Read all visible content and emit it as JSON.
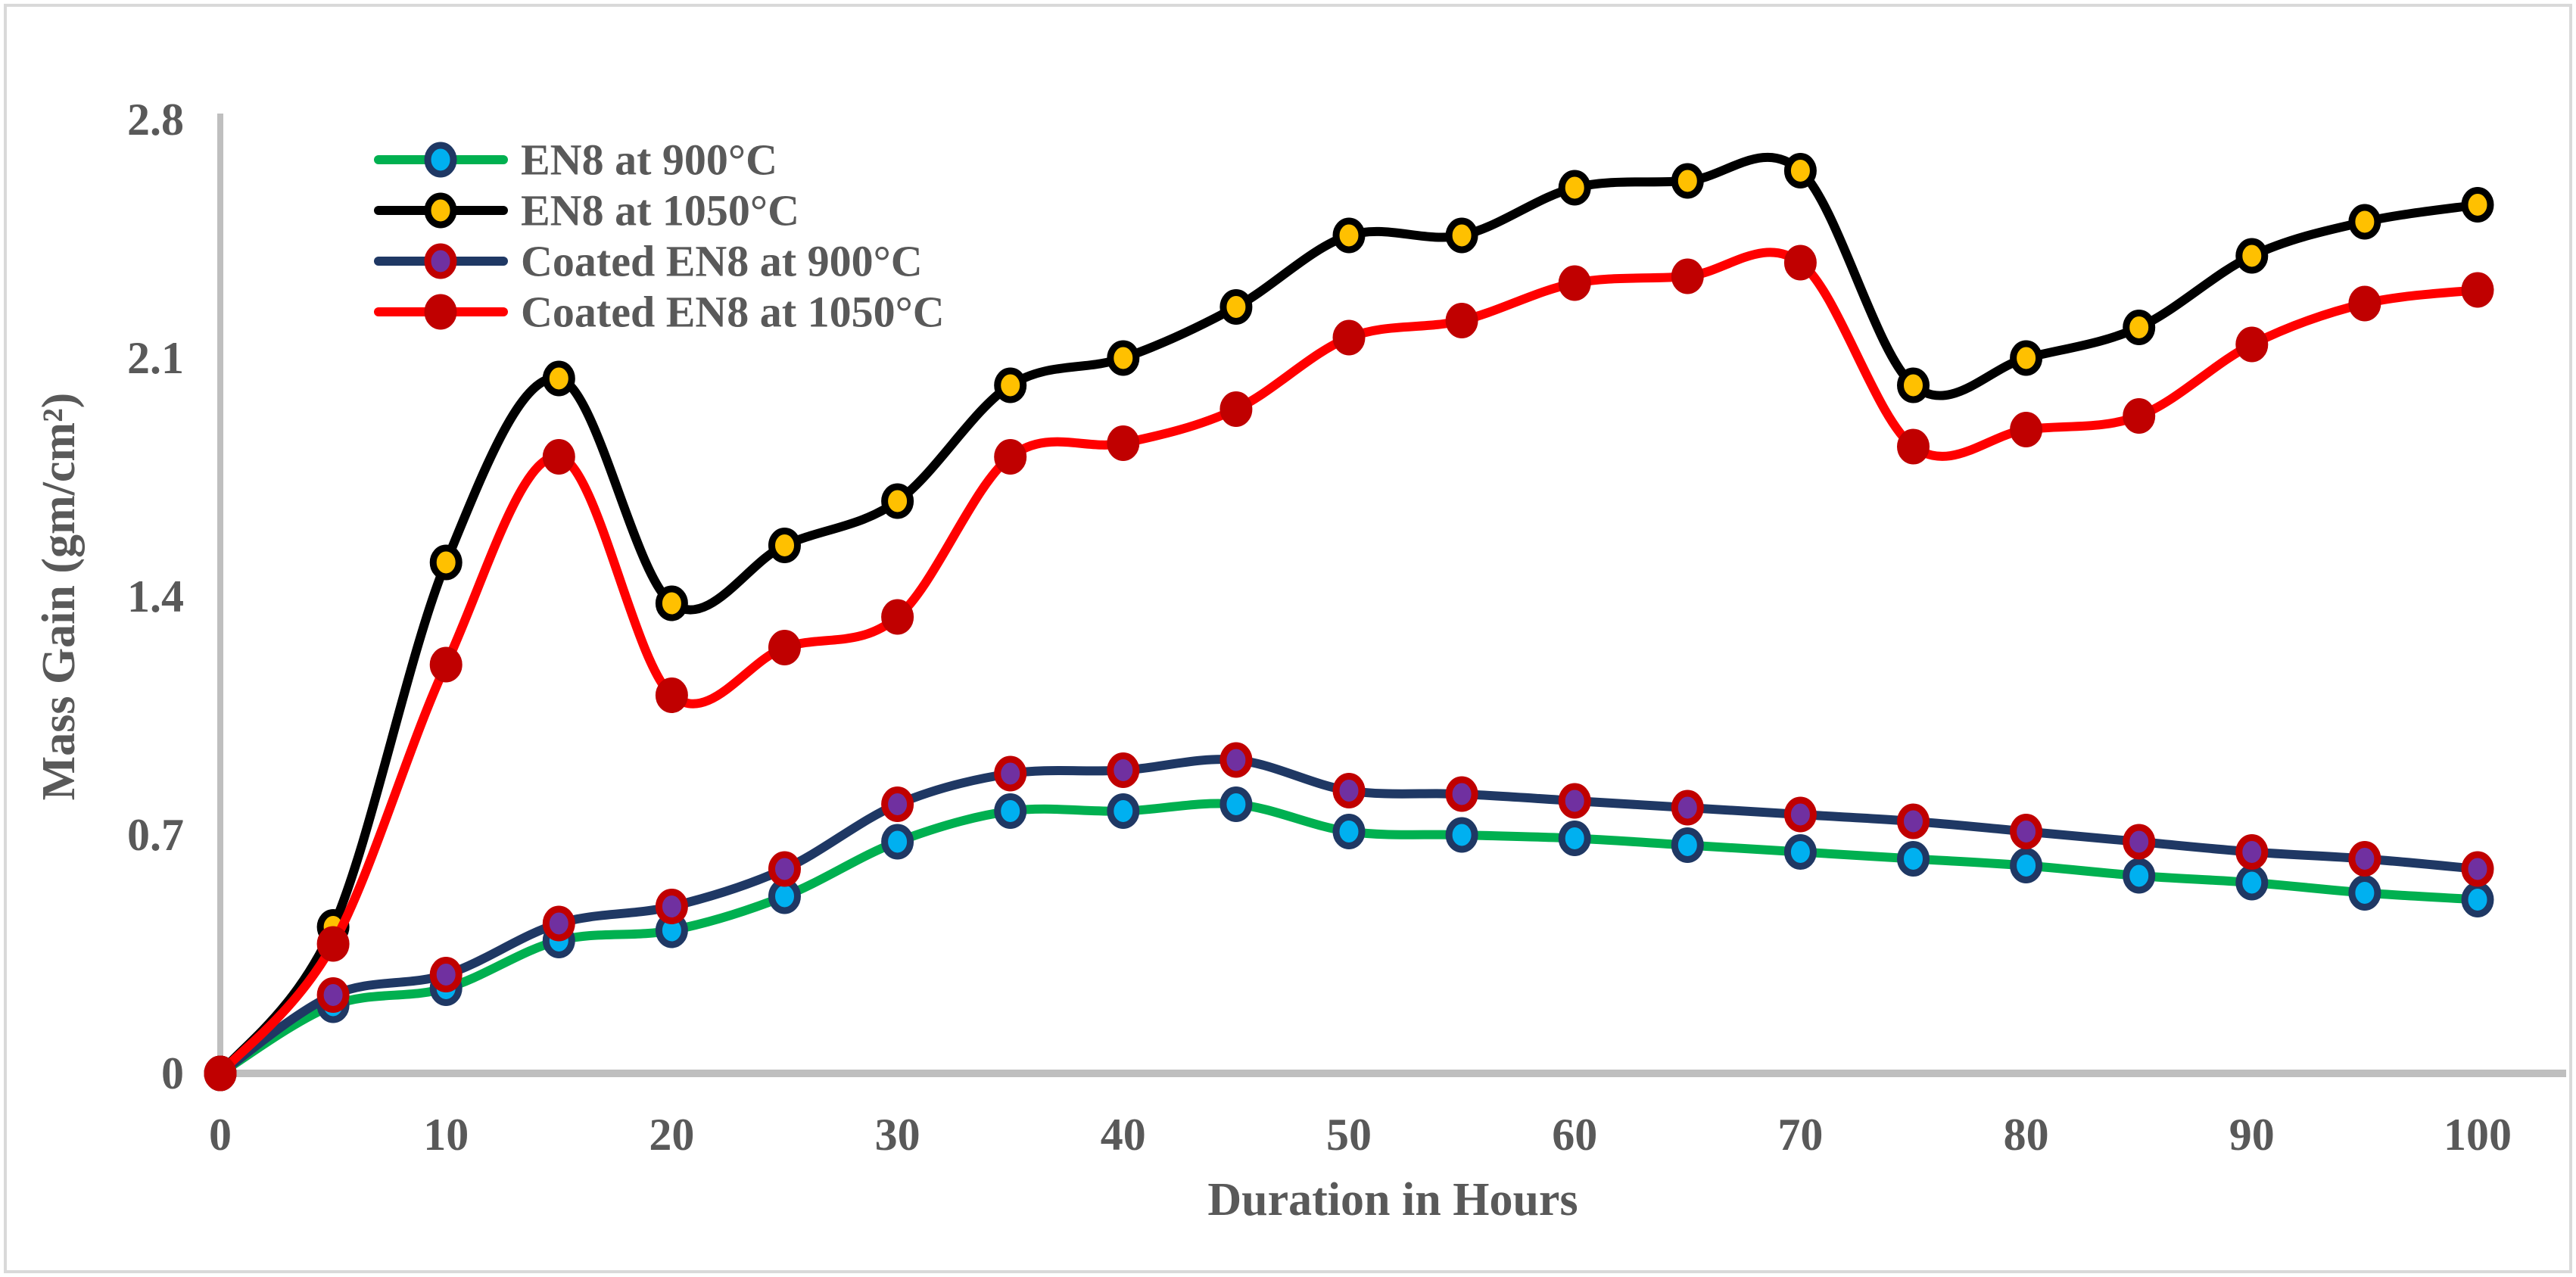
{
  "figure": {
    "background": "#ffffff",
    "frame_color": "#D9D9D9",
    "axis_color": "#BFBFBF",
    "text_color": "#595959"
  },
  "chart_data": {
    "type": "line",
    "title": "",
    "xlabel": "Duration in Hours",
    "ylabel": "Mass Gain (gm/cm²)",
    "x": [
      0,
      5,
      10,
      15,
      20,
      25,
      30,
      35,
      40,
      45,
      50,
      55,
      60,
      65,
      70,
      75,
      80,
      85,
      90,
      95,
      100
    ],
    "x_ticks": [
      0,
      10,
      20,
      30,
      40,
      50,
      60,
      70,
      80,
      90,
      100
    ],
    "x_tick_labels": [
      "0",
      "10",
      "20",
      "30",
      "40",
      "50",
      "60",
      "70",
      "80",
      "90",
      "100"
    ],
    "y_ticks": [
      0,
      0.7,
      1.4,
      2.1,
      2.8
    ],
    "y_tick_labels": [
      "0",
      "0.7",
      "1.4",
      "2.1",
      "2.8"
    ],
    "xlim": [
      0,
      104
    ],
    "ylim": [
      0,
      2.8
    ],
    "grid": false,
    "legend_position": "top-left-inside",
    "series": [
      {
        "name": "EN8 at 900°C",
        "line_color": "#00B050",
        "marker_fill": "#00B0F0",
        "marker_ring": "#1F3864",
        "values": [
          0,
          0.2,
          0.25,
          0.39,
          0.42,
          0.52,
          0.68,
          0.77,
          0.77,
          0.79,
          0.71,
          0.7,
          0.69,
          0.67,
          0.65,
          0.63,
          0.61,
          0.58,
          0.56,
          0.53,
          0.51
        ]
      },
      {
        "name": "EN8 at 1050°C",
        "line_color": "#000000",
        "marker_fill": "#FFC000",
        "marker_ring": "#000000",
        "values": [
          0,
          0.43,
          1.5,
          2.04,
          1.38,
          1.55,
          1.68,
          2.02,
          2.1,
          2.25,
          2.46,
          2.46,
          2.6,
          2.62,
          2.65,
          2.02,
          2.1,
          2.19,
          2.4,
          2.5,
          2.55
        ]
      },
      {
        "name": "Coated EN8 at 900°C",
        "line_color": "#1F3864",
        "marker_fill": "#7030A0",
        "marker_ring": "#C00000",
        "values": [
          0,
          0.23,
          0.29,
          0.44,
          0.49,
          0.6,
          0.79,
          0.88,
          0.89,
          0.92,
          0.83,
          0.82,
          0.8,
          0.78,
          0.76,
          0.74,
          0.71,
          0.68,
          0.65,
          0.63,
          0.6
        ]
      },
      {
        "name": "Coated EN8 at 1050°C",
        "line_color": "#FF0000",
        "marker_fill": "#C00000",
        "marker_ring": "#C00000",
        "values": [
          0,
          0.38,
          1.2,
          1.81,
          1.11,
          1.25,
          1.34,
          1.81,
          1.85,
          1.95,
          2.16,
          2.21,
          2.32,
          2.34,
          2.38,
          1.84,
          1.89,
          1.93,
          2.14,
          2.26,
          2.3
        ]
      }
    ]
  }
}
